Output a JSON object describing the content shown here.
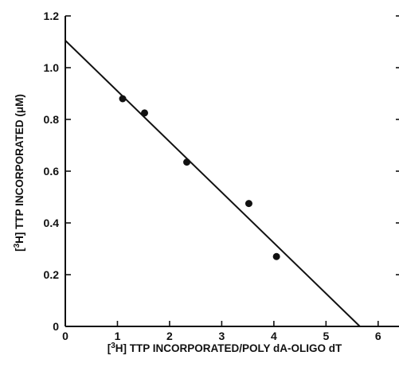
{
  "chart_data": {
    "type": "scatter",
    "xlabel": {
      "prefix": "[",
      "superscript": "3",
      "main": "H] TTP INCORPORATED/POLY dA-OLIGO dT"
    },
    "ylabel": {
      "prefix": "[",
      "superscript": "3",
      "main": "H] TTP INCORPORATED (μM)"
    },
    "xlim": [
      0,
      6.4
    ],
    "ylim": [
      0,
      1.2
    ],
    "xticks": [
      0,
      1,
      2,
      3,
      4,
      5,
      6
    ],
    "yticks": [
      0,
      0.2,
      0.4,
      0.6,
      0.8,
      1.0,
      1.2
    ],
    "xtick_labels": [
      "0",
      "1",
      "2",
      "3",
      "4",
      "5",
      "6"
    ],
    "ytick_labels": [
      "0",
      "0.2",
      "0.4",
      "0.6",
      "0.8",
      "1.0",
      "1.2"
    ],
    "grid": false,
    "points": [
      {
        "x": 1.1,
        "y": 0.88
      },
      {
        "x": 1.52,
        "y": 0.825
      },
      {
        "x": 2.33,
        "y": 0.635
      },
      {
        "x": 3.52,
        "y": 0.475
      },
      {
        "x": 4.05,
        "y": 0.27
      }
    ],
    "fit_line": {
      "x": [
        0,
        5.65
      ],
      "y": [
        1.105,
        0
      ]
    },
    "colors": {
      "axis": "#111111",
      "marker": "#111111",
      "line": "#111111"
    }
  }
}
